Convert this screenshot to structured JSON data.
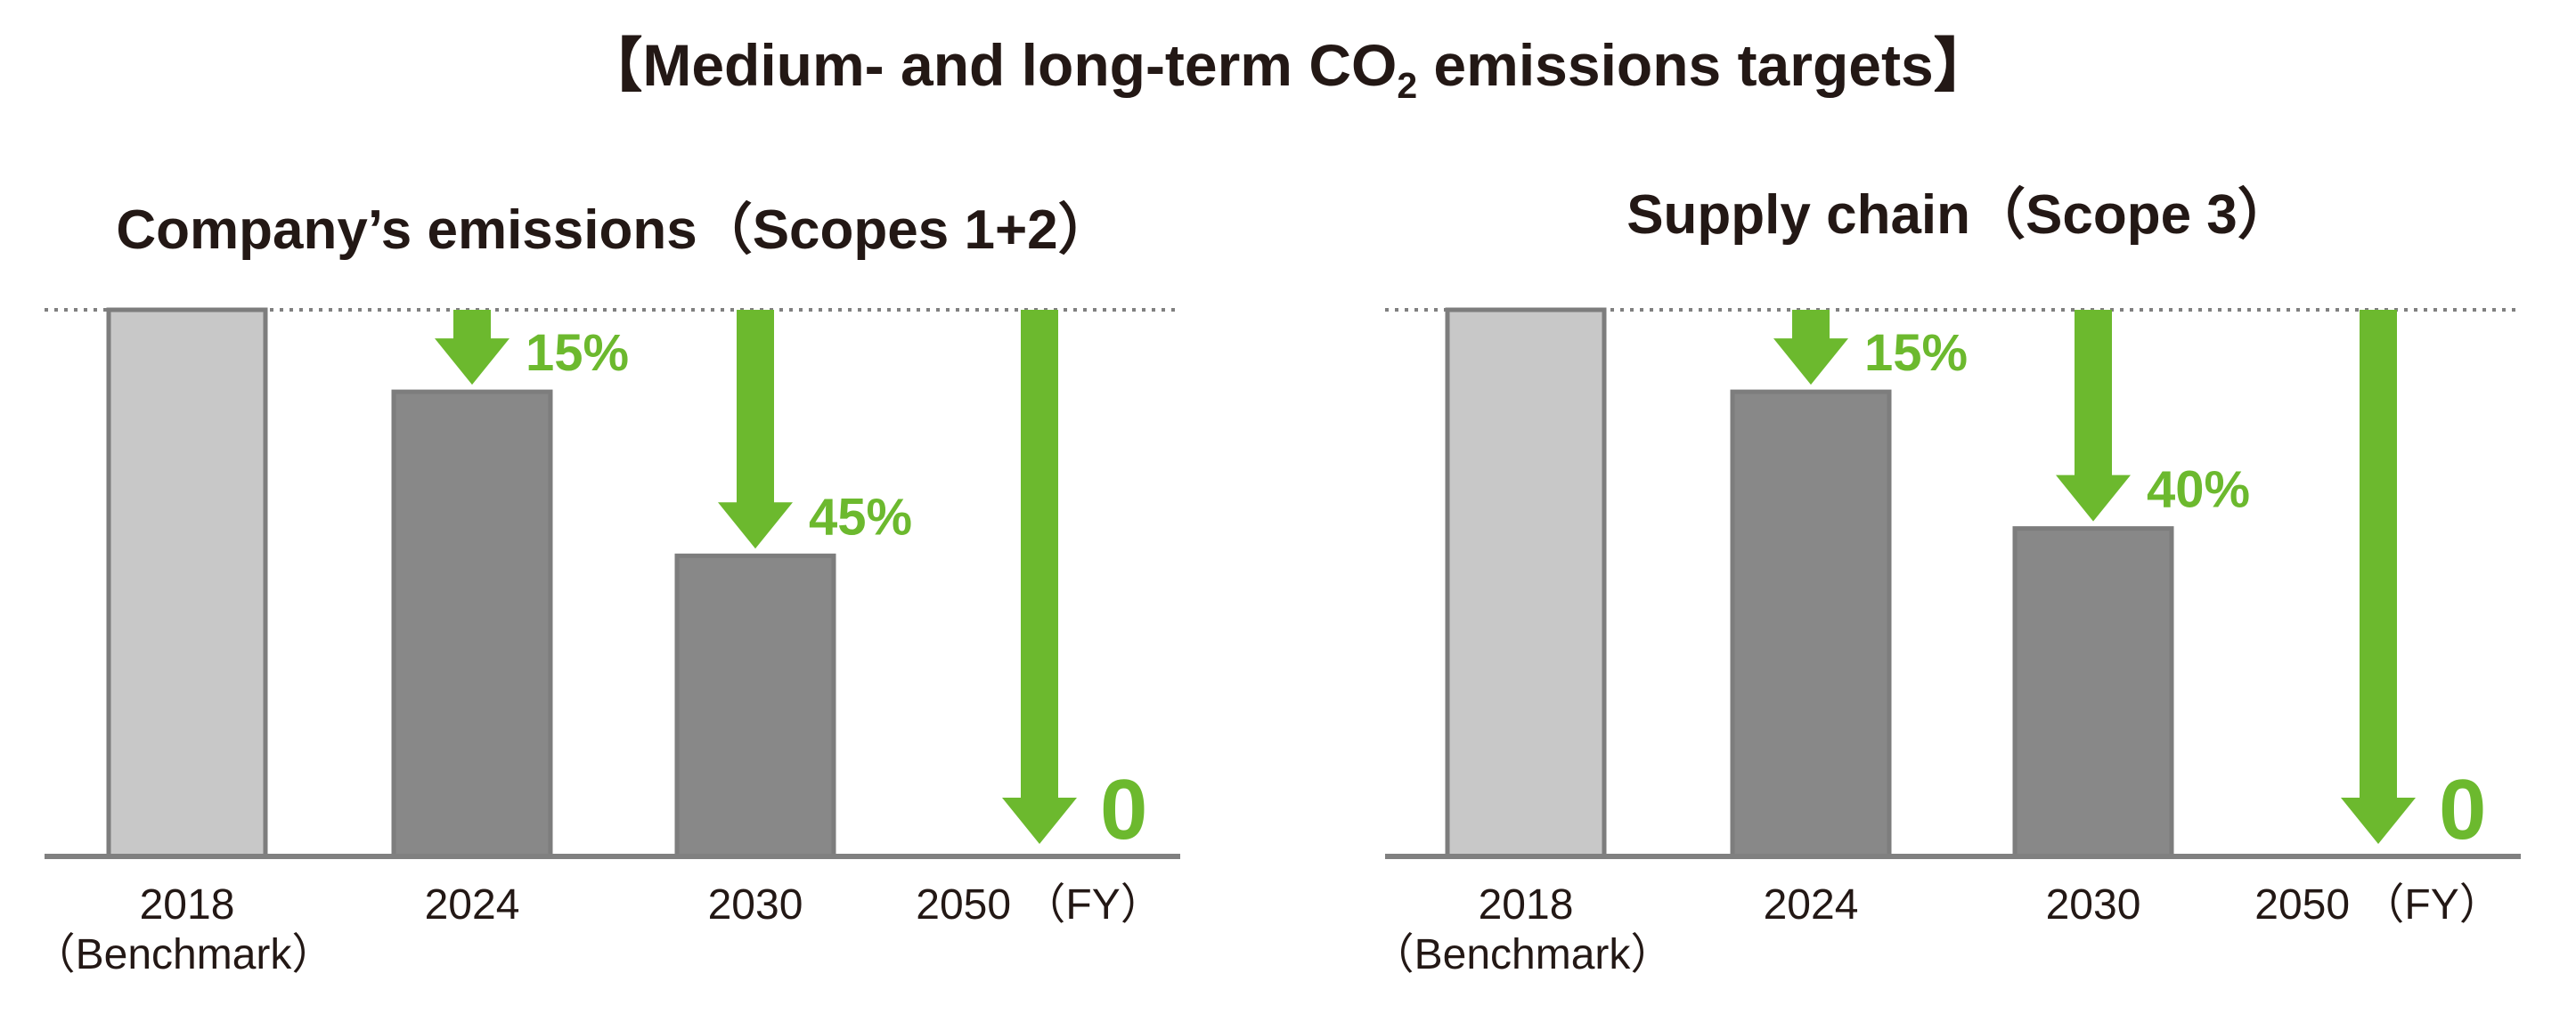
{
  "title": {
    "before_sub": "【Medium- and long-term CO",
    "sub": "2",
    "after_sub": " emissions targets】"
  },
  "colors": {
    "benchmark_bar": "#c8c8c8",
    "target_bar": "#888888",
    "bar_border": "#7d7d7d",
    "arrow": "#6cb92e",
    "axis": "#808080",
    "text": "#231815"
  },
  "chart_data": [
    {
      "type": "bar",
      "title": "Company’s emissions（Scopes 1+2）",
      "categories": [
        "2018",
        "2024",
        "2030",
        "2050"
      ],
      "category_sublabels": [
        "（Benchmark）",
        "",
        "",
        "（FY）"
      ],
      "values": [
        100,
        85,
        55,
        0
      ],
      "reduction_labels": [
        "",
        "15%",
        "45%",
        "0"
      ],
      "ylim": [
        0,
        100
      ],
      "reference_line": "dotted line at 2018 benchmark level",
      "grid": false
    },
    {
      "type": "bar",
      "title": "Supply chain（Scope 3）",
      "categories": [
        "2018",
        "2024",
        "2030",
        "2050"
      ],
      "category_sublabels": [
        "（Benchmark）",
        "",
        "",
        "（FY）"
      ],
      "values": [
        100,
        85,
        60,
        0
      ],
      "reduction_labels": [
        "",
        "15%",
        "40%",
        "0"
      ],
      "ylim": [
        0,
        100
      ],
      "reference_line": "dotted line at 2018 benchmark level",
      "grid": false
    }
  ]
}
